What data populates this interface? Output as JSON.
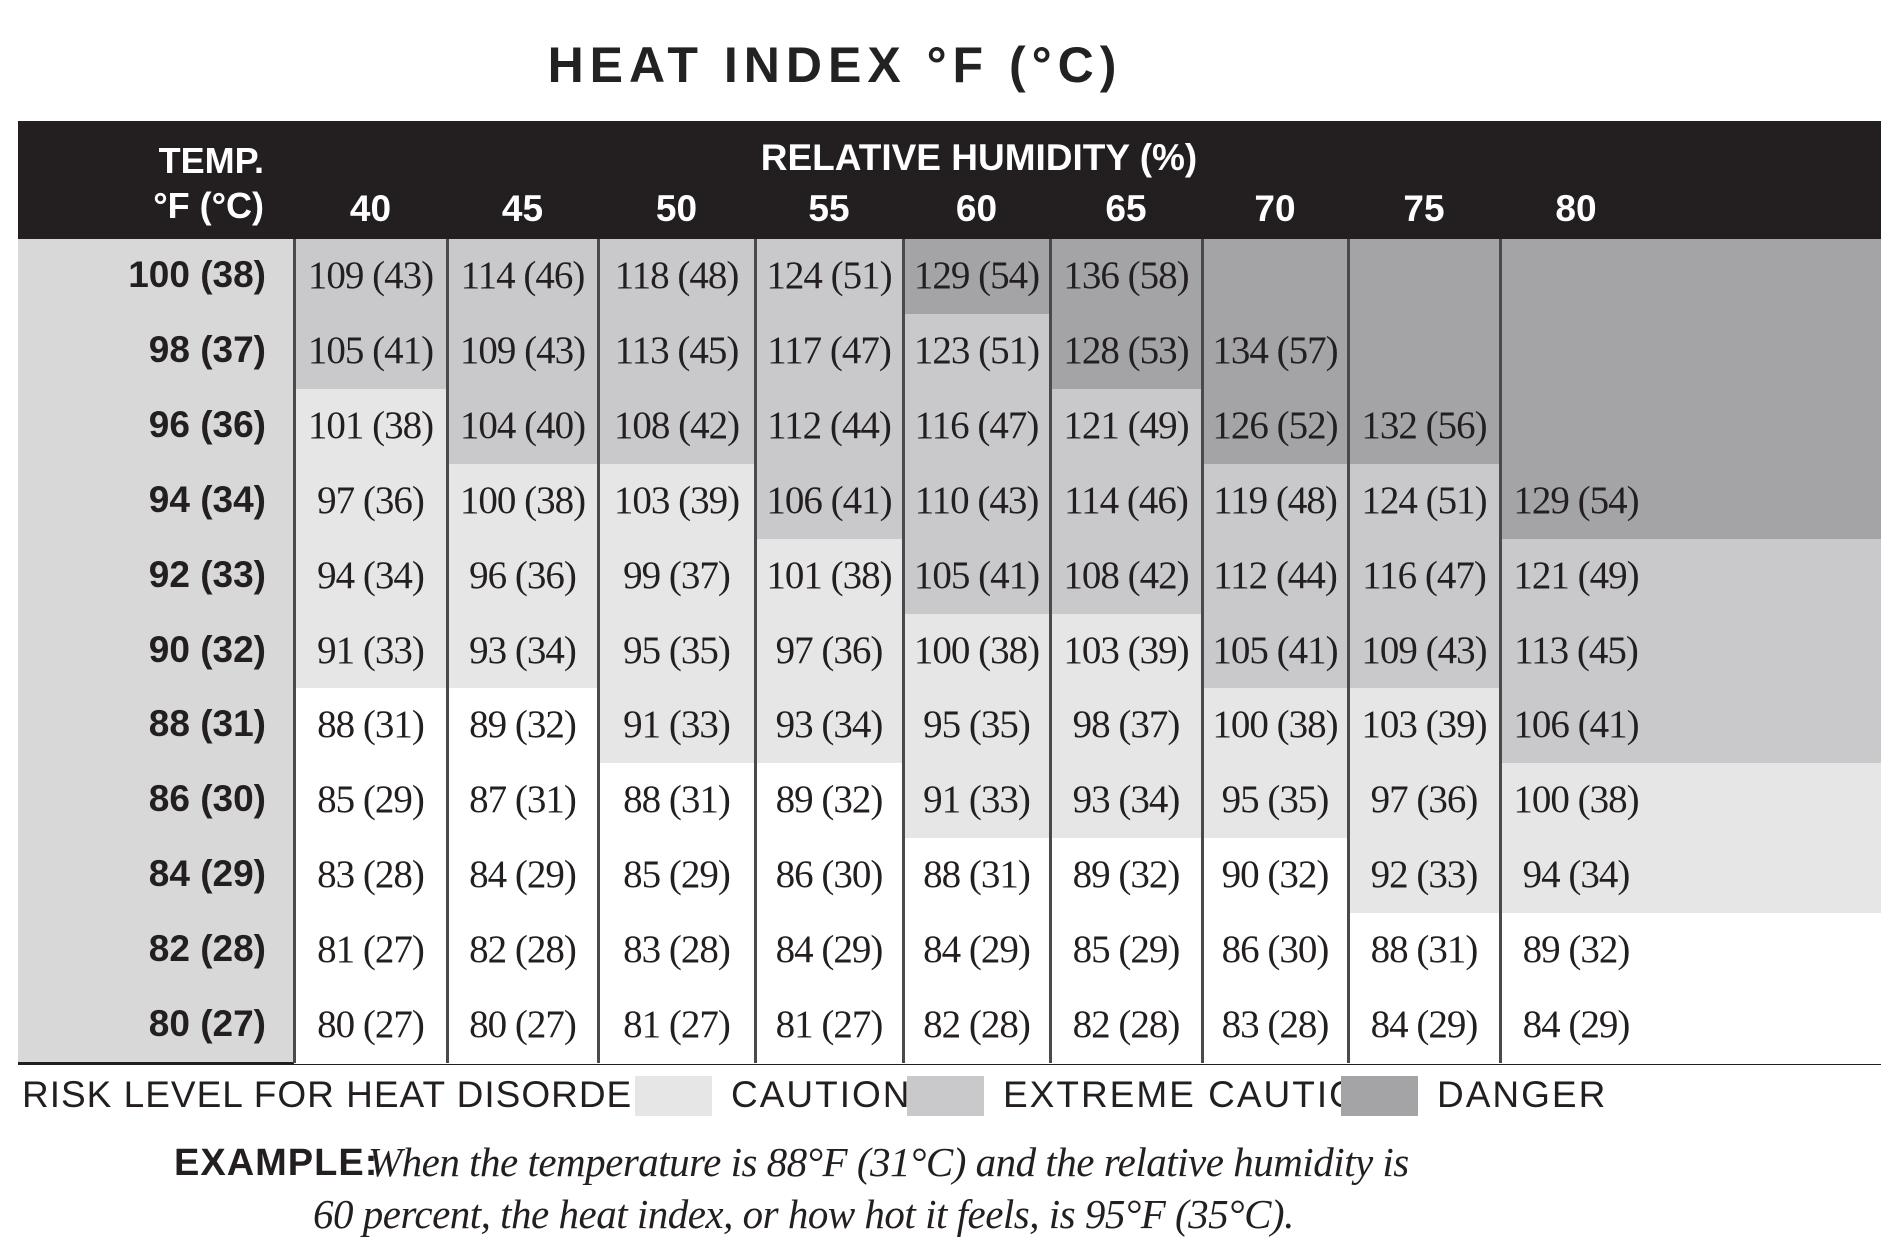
{
  "title": "HEAT INDEX °F (°C)",
  "header": {
    "temp_label": [
      "TEMP.",
      "°F (°C)"
    ],
    "humidity_label": "RELATIVE HUMIDITY (%)",
    "humidity": [
      "40",
      "45",
      "50",
      "55",
      "60",
      "65",
      "70",
      "75",
      "80"
    ]
  },
  "rows": [
    {
      "temp": "100 (38)",
      "cells": [
        "109 (43)",
        "114 (46)",
        "118 (48)",
        "124 (51)",
        "129 (54)",
        "136 (58)",
        null,
        null,
        null
      ],
      "risk": [
        1,
        1,
        1,
        1,
        2,
        2,
        2,
        2,
        2
      ]
    },
    {
      "temp": "98 (37)",
      "cells": [
        "105 (41)",
        "109 (43)",
        "113 (45)",
        "117 (47)",
        "123 (51)",
        "128 (53)",
        "134 (57)",
        null,
        null
      ],
      "risk": [
        1,
        1,
        1,
        1,
        1,
        2,
        2,
        2,
        2
      ]
    },
    {
      "temp": "96 (36)",
      "cells": [
        "101 (38)",
        "104 (40)",
        "108 (42)",
        "112 (44)",
        "116 (47)",
        "121 (49)",
        "126 (52)",
        "132 (56)",
        null
      ],
      "risk": [
        0,
        1,
        1,
        1,
        1,
        1,
        2,
        2,
        2
      ]
    },
    {
      "temp": "94 (34)",
      "cells": [
        "97 (36)",
        "100 (38)",
        "103 (39)",
        "106 (41)",
        "110 (43)",
        "114 (46)",
        "119 (48)",
        "124 (51)",
        "129 (54)"
      ],
      "risk": [
        0,
        0,
        0,
        1,
        1,
        1,
        1,
        1,
        2
      ]
    },
    {
      "temp": "92 (33)",
      "cells": [
        "94 (34)",
        "96 (36)",
        "99 (37)",
        "101 (38)",
        "105 (41)",
        "108 (42)",
        "112 (44)",
        "116 (47)",
        "121 (49)"
      ],
      "risk": [
        0,
        0,
        0,
        0,
        1,
        1,
        1,
        1,
        1
      ]
    },
    {
      "temp": "90 (32)",
      "cells": [
        "91 (33)",
        "93 (34)",
        "95 (35)",
        "97 (36)",
        "100 (38)",
        "103 (39)",
        "105 (41)",
        "109 (43)",
        "113 (45)"
      ],
      "risk": [
        0,
        0,
        0,
        0,
        0,
        0,
        1,
        1,
        1
      ]
    },
    {
      "temp": "88 (31)",
      "cells": [
        "88 (31)",
        "89 (32)",
        "91 (33)",
        "93 (34)",
        "95 (35)",
        "98 (37)",
        "100 (38)",
        "103 (39)",
        "106 (41)"
      ],
      "risk": [
        null,
        null,
        0,
        0,
        0,
        0,
        0,
        0,
        1
      ]
    },
    {
      "temp": "86 (30)",
      "cells": [
        "85 (29)",
        "87 (31)",
        "88 (31)",
        "89 (32)",
        "91 (33)",
        "93 (34)",
        "95 (35)",
        "97 (36)",
        "100 (38)"
      ],
      "risk": [
        null,
        null,
        null,
        null,
        0,
        0,
        0,
        0,
        0
      ]
    },
    {
      "temp": "84 (29)",
      "cells": [
        "83 (28)",
        "84 (29)",
        "85 (29)",
        "86 (30)",
        "88 (31)",
        "89 (32)",
        "90 (32)",
        "92 (33)",
        "94 (34)"
      ],
      "risk": [
        null,
        null,
        null,
        null,
        null,
        null,
        null,
        0,
        0
      ]
    },
    {
      "temp": "82 (28)",
      "cells": [
        "81 (27)",
        "82 (28)",
        "83 (28)",
        "84 (29)",
        "84 (29)",
        "85 (29)",
        "86 (30)",
        "88 (31)",
        "89 (32)"
      ],
      "risk": [
        null,
        null,
        null,
        null,
        null,
        null,
        null,
        null,
        null
      ]
    },
    {
      "temp": "80 (27)",
      "cells": [
        "80 (27)",
        "80 (27)",
        "81 (27)",
        "81 (27)",
        "82 (28)",
        "82 (28)",
        "83 (28)",
        "84 (29)",
        "84 (29)"
      ],
      "risk": [
        null,
        null,
        null,
        null,
        null,
        null,
        null,
        null,
        null
      ]
    }
  ],
  "legend": {
    "label": "RISK LEVEL FOR HEAT DISORDERS:",
    "levels": [
      {
        "label": "CAUTION",
        "color": "#e6e6e7"
      },
      {
        "label": "EXTREME CAUTION",
        "color": "#c9c9cb"
      },
      {
        "label": "DANGER",
        "color": "#a4a4a7"
      }
    ]
  },
  "example": {
    "label": "EXAMPLE:",
    "lines": [
      "When the temperature is 88°F (31°C) and the relative humidity is",
      "60 percent, the heat index, or how hot it feels, is 95°F (35°C)."
    ]
  }
}
